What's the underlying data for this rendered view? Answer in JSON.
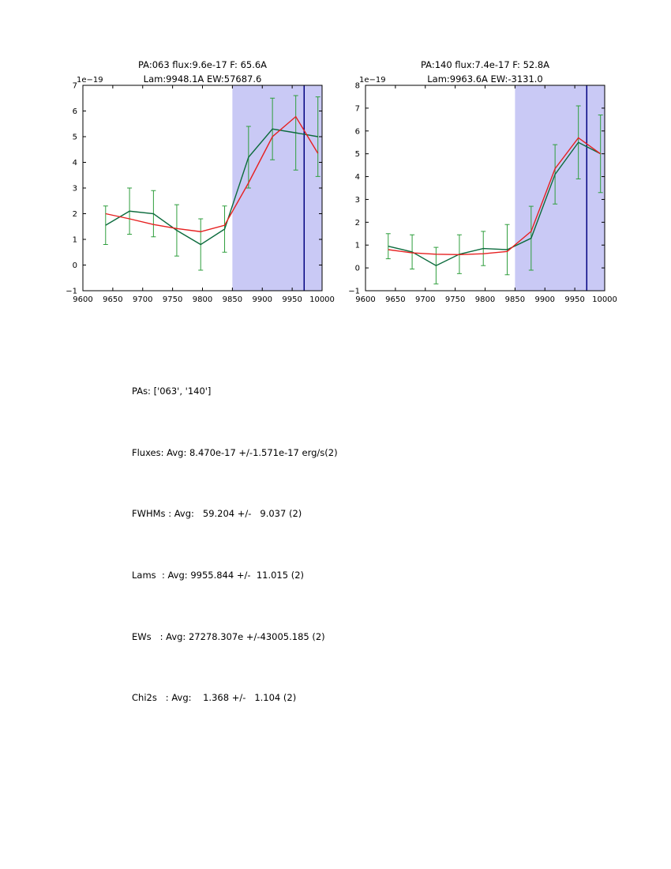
{
  "page": {
    "background": "#ffffff"
  },
  "colors": {
    "axis": "#000000",
    "span_fill": "#c9c9f5",
    "vline": "#000080",
    "data_line": "#0c6b3d",
    "error_bar": "#2e9e3c",
    "model_line": "#e62020"
  },
  "stats": {
    "lines": [
      "PAs: ['063', '140']",
      "Fluxes: Avg: 8.470e-17 +/-1.571e-17 erg/s(2)",
      "FWHMs : Avg:   59.204 +/-   9.037 (2)",
      "Lams  : Avg: 9955.844 +/-  11.015 (2)",
      "EWs   : Avg: 27278.307e +/-43005.185 (2)",
      "Chi2s   : Avg:    1.368 +/-   1.104 (2)"
    ]
  },
  "chart_data": [
    {
      "type": "line",
      "title": "PA:063 flux:9.6e-17 F: 65.6A",
      "subtitle": "Lam:9948.1A EW:57687.6",
      "offset_text": "1e−19",
      "xlim": [
        9600,
        10000
      ],
      "ylim": [
        -1,
        7
      ],
      "xticks": [
        9600,
        9650,
        9700,
        9750,
        9800,
        9850,
        9900,
        9950,
        10000
      ],
      "yticks": [
        -1,
        0,
        1,
        2,
        3,
        4,
        5,
        6,
        7
      ],
      "highlight_span": {
        "x0": 9850,
        "x1": 10000
      },
      "vline_x": 9970,
      "series": [
        {
          "name": "measured-spectrum",
          "color_key": "data_line",
          "err_color_key": "error_bar",
          "x": [
            9638,
            9678,
            9718,
            9757,
            9797,
            9837,
            9877,
            9917,
            9956,
            9993
          ],
          "y": [
            1.55,
            2.1,
            2.0,
            1.35,
            0.8,
            1.4,
            4.2,
            5.3,
            5.15,
            5.0
          ],
          "yerr": [
            0.75,
            0.9,
            0.9,
            1.0,
            1.0,
            0.9,
            1.2,
            1.2,
            1.45,
            1.55
          ]
        },
        {
          "name": "model-fit",
          "color_key": "model_line",
          "x": [
            9638,
            9678,
            9718,
            9757,
            9797,
            9837,
            9877,
            9917,
            9956,
            9993
          ],
          "y": [
            2.0,
            1.8,
            1.58,
            1.42,
            1.3,
            1.55,
            3.2,
            5.0,
            5.78,
            4.35
          ]
        }
      ]
    },
    {
      "type": "line",
      "title": "PA:140 flux:7.4e-17 F: 52.8A",
      "subtitle": "Lam:9963.6A EW:-3131.0",
      "offset_text": "1e−19",
      "xlim": [
        9600,
        10000
      ],
      "ylim": [
        -1,
        8
      ],
      "xticks": [
        9600,
        9650,
        9700,
        9750,
        9800,
        9850,
        9900,
        9950,
        10000
      ],
      "yticks": [
        -1,
        0,
        1,
        2,
        3,
        4,
        5,
        6,
        7,
        8
      ],
      "highlight_span": {
        "x0": 9850,
        "x1": 10000
      },
      "vline_x": 9970,
      "series": [
        {
          "name": "measured-spectrum",
          "color_key": "data_line",
          "err_color_key": "error_bar",
          "x": [
            9638,
            9678,
            9718,
            9757,
            9797,
            9837,
            9877,
            9917,
            9956,
            9993
          ],
          "y": [
            0.95,
            0.7,
            0.1,
            0.6,
            0.85,
            0.8,
            1.3,
            4.1,
            5.5,
            5.0
          ],
          "yerr": [
            0.55,
            0.75,
            0.8,
            0.85,
            0.75,
            1.1,
            1.4,
            1.3,
            1.6,
            1.7
          ]
        },
        {
          "name": "model-fit",
          "color_key": "model_line",
          "x": [
            9638,
            9678,
            9718,
            9757,
            9797,
            9837,
            9877,
            9917,
            9956,
            9993
          ],
          "y": [
            0.8,
            0.66,
            0.6,
            0.58,
            0.62,
            0.72,
            1.6,
            4.35,
            5.7,
            5.0
          ]
        }
      ]
    }
  ]
}
